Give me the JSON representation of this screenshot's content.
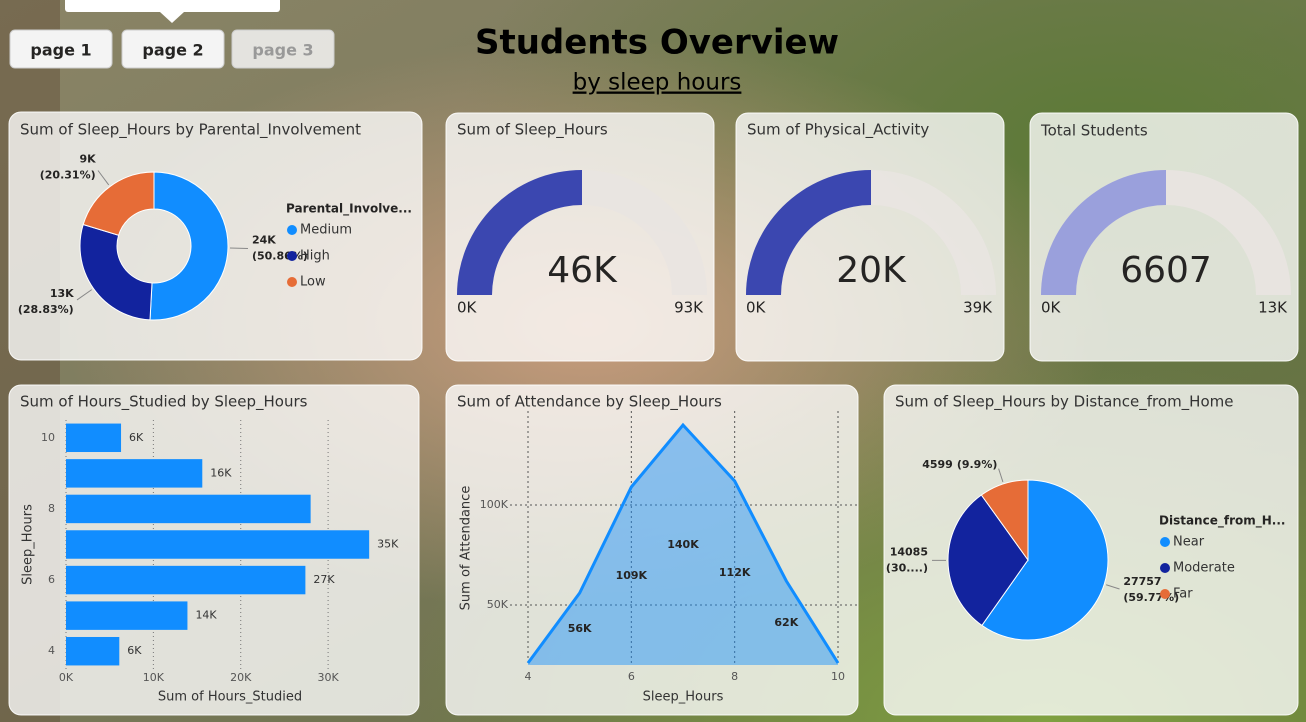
{
  "header": {
    "title": "Students Overview",
    "subtitle": "by sleep hours"
  },
  "nav": {
    "pages": [
      "page 1",
      "page 2",
      "page 3"
    ]
  },
  "chart_data": [
    {
      "type": "donut",
      "title": "Sum of Sleep_Hours by Parental_Involvement",
      "legend_title": "Parental_Involve...",
      "categories": [
        "Medium",
        "High",
        "Low"
      ],
      "values": [
        23620,
        13389,
        9432
      ],
      "value_labels": [
        "24K",
        "13K",
        "9K"
      ],
      "share_labels": [
        "(50.86%)",
        "(28.83%)",
        "(20.31%)"
      ],
      "colors": [
        "#118DFF",
        "#12239E",
        "#E66C37"
      ]
    },
    {
      "type": "gauge",
      "title": "Sum of Sleep_Hours",
      "value": 46441,
      "value_label": "46K",
      "min": {
        "value": 0,
        "label": "0K"
      },
      "max": {
        "value": 92882,
        "label": "93K"
      },
      "color": "#3B47B0"
    },
    {
      "type": "gauge",
      "title": "Sum of Physical_Activity",
      "value": 19700,
      "value_label": "20K",
      "min": {
        "value": 0,
        "label": "0K"
      },
      "max": {
        "value": 39400,
        "label": "39K"
      },
      "color": "#3B47B0"
    },
    {
      "type": "gauge",
      "title": "Total Students",
      "value": 6607,
      "min": {
        "value": 0,
        "label": "0K"
      },
      "max": {
        "value": 13214,
        "label": "13K"
      },
      "color": "#9AA0DC"
    },
    {
      "type": "hbar",
      "title": "Sum of Hours_Studied by Sleep_Hours",
      "y": [
        4,
        5,
        6,
        7,
        8,
        9,
        10
      ],
      "values": [
        6100,
        13900,
        27400,
        34700,
        28000,
        15600,
        6300
      ],
      "value_labels": [
        "6K",
        "14K",
        "27K",
        "35K",
        null,
        "16K",
        "6K"
      ],
      "xlim": [
        0,
        38000
      ],
      "xticks": [
        {
          "value": 0,
          "label": "0K"
        },
        {
          "value": 10000,
          "label": "10K"
        },
        {
          "value": 20000,
          "label": "20K"
        },
        {
          "value": 30000,
          "label": "30K"
        }
      ],
      "ylim": [
        3.5,
        10.5
      ],
      "yticks": [
        4,
        6,
        8,
        10
      ],
      "x_label": "Sum of Hours_Studied",
      "y_label": "Sleep_Hours",
      "color": "#118DFF",
      "grid": true
    },
    {
      "type": "area",
      "title": "Sum of Attendance by Sleep_Hours",
      "x": [
        4,
        5,
        6,
        7,
        8,
        9,
        10
      ],
      "values": [
        21000,
        56000,
        109000,
        140000,
        112000,
        62000,
        21000
      ],
      "value_labels": [
        null,
        "56K",
        "109K",
        "140K",
        "112K",
        "62K",
        null
      ],
      "xlim": [
        4,
        10
      ],
      "xticks": [
        4,
        6,
        8,
        10
      ],
      "ylim": [
        20000,
        147000
      ],
      "yticks": [
        {
          "value": 50000,
          "label": "50K"
        },
        {
          "value": 100000,
          "label": "100K"
        }
      ],
      "x_label": "Sleep_Hours",
      "y_label": "Sum of Attendance",
      "color": "#118DFF",
      "grid": true
    },
    {
      "type": "pie",
      "title": "Sum of Sleep_Hours by Distance_from_Home",
      "legend_title": "Distance_from_H...",
      "categories": [
        "Near",
        "Moderate",
        "Far"
      ],
      "values": [
        27757,
        14085,
        4599
      ],
      "share_labels": [
        "(59.77%)",
        "(30....)",
        "(9.9%)"
      ],
      "colors": [
        "#118DFF",
        "#12239E",
        "#E66C37"
      ]
    }
  ]
}
